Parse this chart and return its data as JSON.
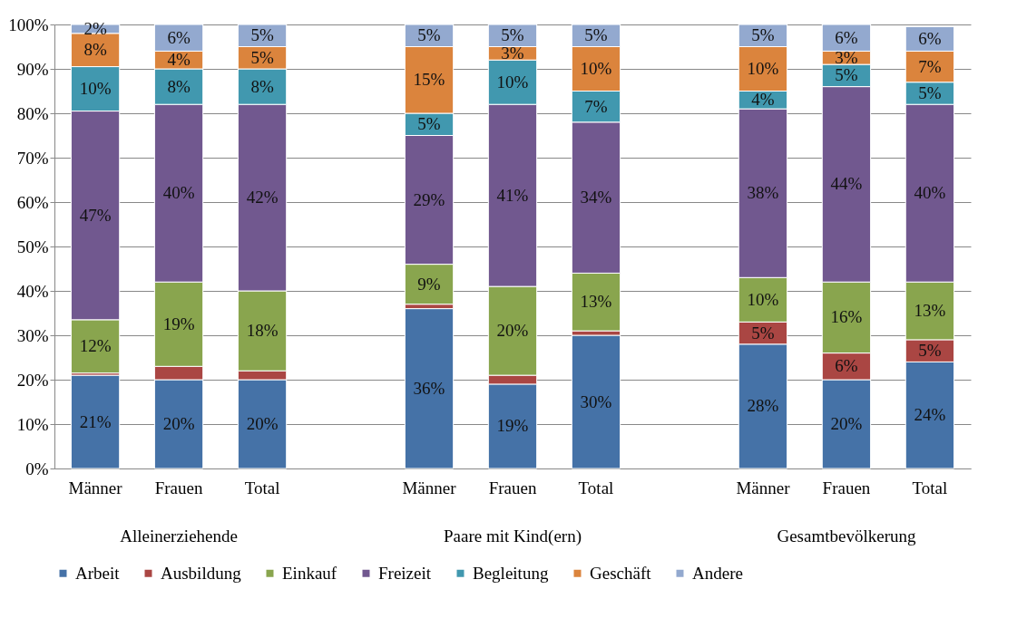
{
  "chart_data": {
    "type": "bar",
    "stacked": true,
    "categories": [
      "Männer",
      "Frauen",
      "Total",
      null,
      "Männer",
      "Frauen",
      "Total",
      null,
      "Männer",
      "Frauen",
      "Total"
    ],
    "annotations": [
      "Alleinerziehende",
      "Paare mit Kind(ern)",
      "Gesamtbevölkerung"
    ],
    "ylim": [
      0,
      100
    ],
    "yticks": [
      {
        "value": 0,
        "label": "0%"
      },
      {
        "value": 10,
        "label": "10%"
      },
      {
        "value": 20,
        "label": "20%"
      },
      {
        "value": 30,
        "label": "30%"
      },
      {
        "value": 40,
        "label": "40%"
      },
      {
        "value": 50,
        "label": "50%"
      },
      {
        "value": 60,
        "label": "60%"
      },
      {
        "value": 70,
        "label": "70%"
      },
      {
        "value": 80,
        "label": "80%"
      },
      {
        "value": 90,
        "label": "90%"
      },
      {
        "value": 100,
        "label": "100%"
      }
    ],
    "grid": "y",
    "legend": "bottom",
    "series": [
      {
        "name": "Arbeit",
        "color": "#4572a7",
        "values": [
          21,
          20,
          20,
          null,
          36,
          19,
          30,
          null,
          28,
          20,
          24
        ],
        "value_labels": [
          "21%",
          "20%",
          "20%",
          null,
          "36%",
          "19%",
          "30%",
          null,
          "28%",
          "20%",
          "24%"
        ]
      },
      {
        "name": "Ausbildung",
        "color": "#aa4643",
        "values": [
          0.5,
          3,
          2,
          null,
          1,
          2,
          1,
          null,
          5,
          6,
          5
        ],
        "value_labels": [
          null,
          null,
          null,
          null,
          null,
          null,
          null,
          null,
          "5%",
          "6%",
          "5%"
        ]
      },
      {
        "name": "Einkauf",
        "color": "#89a54e",
        "values": [
          12,
          19,
          18,
          null,
          9,
          20,
          13,
          null,
          10,
          16,
          13
        ],
        "value_labels": [
          "12%",
          "19%",
          "18%",
          null,
          "9%",
          "20%",
          "13%",
          null,
          "10%",
          "16%",
          "13%"
        ]
      },
      {
        "name": "Freizeit",
        "color": "#71588f",
        "values": [
          47,
          40,
          42,
          null,
          29,
          41,
          34,
          null,
          38,
          44,
          40
        ],
        "value_labels": [
          "47%",
          "40%",
          "42%",
          null,
          "29%",
          "41%",
          "34%",
          null,
          "38%",
          "44%",
          "40%"
        ]
      },
      {
        "name": "Begleitung",
        "color": "#4198af",
        "values": [
          10,
          8,
          8,
          null,
          5,
          10,
          7,
          null,
          4,
          5,
          5
        ],
        "value_labels": [
          "10%",
          "8%",
          "8%",
          null,
          "5%",
          "10%",
          "7%",
          null,
          "4%",
          "5%",
          "5%"
        ]
      },
      {
        "name": "Geschäft",
        "color": "#db843d",
        "values": [
          7.5,
          4,
          5,
          null,
          15,
          3,
          10,
          null,
          10,
          3,
          7
        ],
        "value_labels": [
          "8%",
          "4%",
          "5%",
          null,
          "15%",
          "3%",
          "10%",
          null,
          "10%",
          "3%",
          "7%"
        ]
      },
      {
        "name": "Andere",
        "color": "#93a9cf",
        "values": [
          2,
          6,
          5,
          null,
          5,
          5,
          5,
          null,
          5,
          6,
          5.5
        ],
        "value_labels": [
          "2%",
          "6%",
          "5%",
          null,
          "5%",
          "5%",
          "5%",
          null,
          "5%",
          "6%",
          "6%"
        ]
      }
    ]
  }
}
